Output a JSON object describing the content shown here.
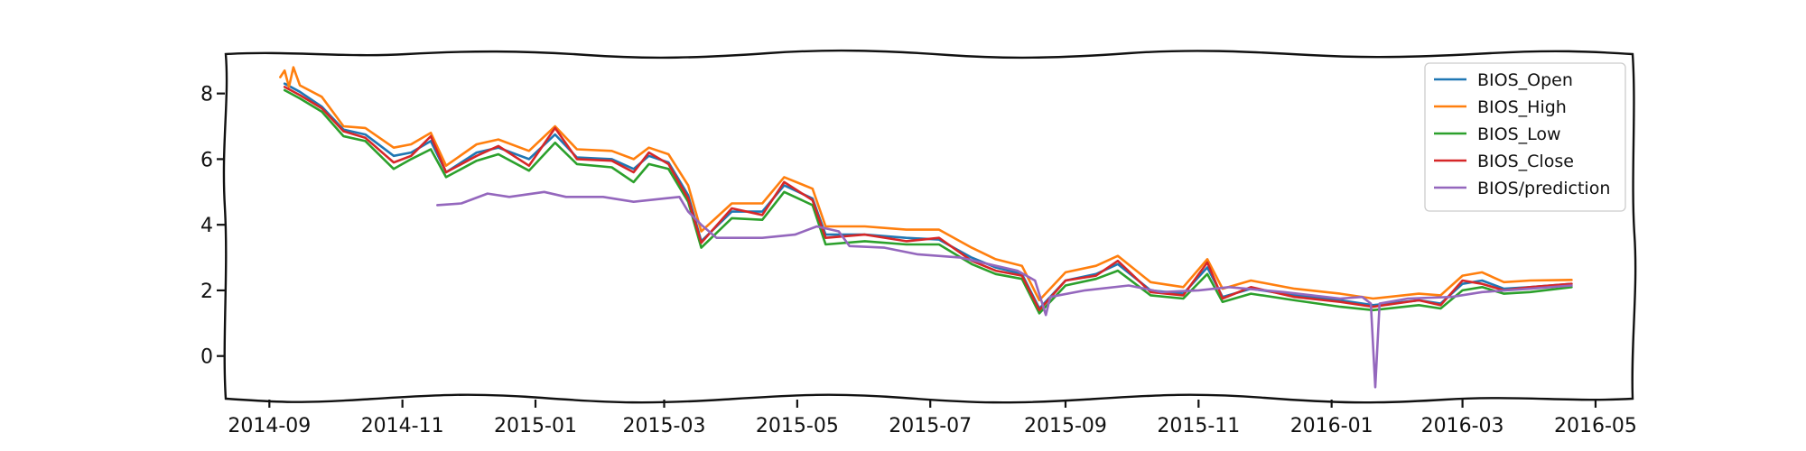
{
  "chart_data": {
    "type": "line",
    "title": "",
    "xlabel": "",
    "ylabel": "",
    "x_axis": "date",
    "xlim": [
      "2014-08-12",
      "2016-05-18"
    ],
    "ylim": [
      -1.3,
      9.2
    ],
    "x_ticks": [
      "2014-09",
      "2014-11",
      "2015-01",
      "2015-03",
      "2015-05",
      "2015-07",
      "2015-09",
      "2015-11",
      "2016-01",
      "2016-03",
      "2016-05"
    ],
    "x_tick_labels": [
      "2014-09",
      "2014-11",
      "2015-01",
      "2015-03",
      "2015-05",
      "2015-07",
      "2015-09",
      "2015-11",
      "2016-01",
      "2016-03",
      "2016-05"
    ],
    "y_ticks": [
      0,
      2,
      4,
      6,
      8
    ],
    "y_tick_labels": [
      "0",
      "2",
      "4",
      "6",
      "8"
    ],
    "grid": false,
    "legend_position": "top-right",
    "style": "hand-drawn frame",
    "series": [
      {
        "name": "BIOS_Open",
        "color": "#1f77b4",
        "points": [
          [
            "2014-09-08",
            8.3
          ],
          [
            "2014-09-15",
            8.05
          ],
          [
            "2014-09-25",
            7.6
          ],
          [
            "2014-10-05",
            6.9
          ],
          [
            "2014-10-15",
            6.75
          ],
          [
            "2014-10-28",
            6.1
          ],
          [
            "2014-11-05",
            6.2
          ],
          [
            "2014-11-14",
            6.55
          ],
          [
            "2014-11-21",
            5.6
          ],
          [
            "2014-12-05",
            6.2
          ],
          [
            "2014-12-15",
            6.35
          ],
          [
            "2014-12-29",
            6.0
          ],
          [
            "2015-01-10",
            6.75
          ],
          [
            "2015-01-20",
            6.05
          ],
          [
            "2015-02-05",
            6.0
          ],
          [
            "2015-02-15",
            5.7
          ],
          [
            "2015-02-22",
            6.1
          ],
          [
            "2015-03-03",
            5.9
          ],
          [
            "2015-03-12",
            4.9
          ],
          [
            "2015-03-18",
            3.5
          ],
          [
            "2015-04-01",
            4.4
          ],
          [
            "2015-04-15",
            4.4
          ],
          [
            "2015-04-25",
            5.2
          ],
          [
            "2015-05-08",
            4.8
          ],
          [
            "2015-05-14",
            3.7
          ],
          [
            "2015-06-01",
            3.7
          ],
          [
            "2015-06-20",
            3.6
          ],
          [
            "2015-07-05",
            3.55
          ],
          [
            "2015-07-20",
            3.0
          ],
          [
            "2015-07-31",
            2.7
          ],
          [
            "2015-08-12",
            2.5
          ],
          [
            "2015-08-20",
            1.45
          ],
          [
            "2015-09-01",
            2.3
          ],
          [
            "2015-09-15",
            2.5
          ],
          [
            "2015-09-25",
            2.8
          ],
          [
            "2015-10-10",
            2.0
          ],
          [
            "2015-10-25",
            1.9
          ],
          [
            "2015-11-05",
            2.7
          ],
          [
            "2015-11-12",
            1.8
          ],
          [
            "2015-11-25",
            2.05
          ],
          [
            "2015-12-15",
            1.85
          ],
          [
            "2016-01-05",
            1.7
          ],
          [
            "2016-01-20",
            1.55
          ],
          [
            "2016-02-10",
            1.7
          ],
          [
            "2016-02-20",
            1.6
          ],
          [
            "2016-03-01",
            2.2
          ],
          [
            "2016-03-10",
            2.3
          ],
          [
            "2016-03-20",
            2.05
          ],
          [
            "2016-04-01",
            2.1
          ],
          [
            "2016-04-20",
            2.2
          ]
        ]
      },
      {
        "name": "BIOS_High",
        "color": "#ff7f0e",
        "points": [
          [
            "2014-09-06",
            8.5
          ],
          [
            "2014-09-08",
            8.7
          ],
          [
            "2014-09-10",
            8.2
          ],
          [
            "2014-09-12",
            8.8
          ],
          [
            "2014-09-15",
            8.25
          ],
          [
            "2014-09-25",
            7.9
          ],
          [
            "2014-10-05",
            7.0
          ],
          [
            "2014-10-15",
            6.95
          ],
          [
            "2014-10-28",
            6.35
          ],
          [
            "2014-11-05",
            6.45
          ],
          [
            "2014-11-14",
            6.8
          ],
          [
            "2014-11-21",
            5.8
          ],
          [
            "2014-12-05",
            6.45
          ],
          [
            "2014-12-15",
            6.6
          ],
          [
            "2014-12-29",
            6.25
          ],
          [
            "2015-01-10",
            7.0
          ],
          [
            "2015-01-20",
            6.3
          ],
          [
            "2015-02-05",
            6.25
          ],
          [
            "2015-02-15",
            6.0
          ],
          [
            "2015-02-22",
            6.35
          ],
          [
            "2015-03-03",
            6.15
          ],
          [
            "2015-03-12",
            5.2
          ],
          [
            "2015-03-18",
            3.8
          ],
          [
            "2015-04-01",
            4.65
          ],
          [
            "2015-04-15",
            4.65
          ],
          [
            "2015-04-25",
            5.45
          ],
          [
            "2015-05-08",
            5.1
          ],
          [
            "2015-05-14",
            3.95
          ],
          [
            "2015-06-01",
            3.95
          ],
          [
            "2015-06-20",
            3.85
          ],
          [
            "2015-07-05",
            3.85
          ],
          [
            "2015-07-20",
            3.3
          ],
          [
            "2015-07-31",
            2.95
          ],
          [
            "2015-08-12",
            2.75
          ],
          [
            "2015-08-20",
            1.7
          ],
          [
            "2015-09-01",
            2.55
          ],
          [
            "2015-09-15",
            2.75
          ],
          [
            "2015-09-25",
            3.05
          ],
          [
            "2015-10-10",
            2.25
          ],
          [
            "2015-10-25",
            2.1
          ],
          [
            "2015-11-05",
            2.95
          ],
          [
            "2015-11-12",
            2.05
          ],
          [
            "2015-11-25",
            2.3
          ],
          [
            "2015-12-15",
            2.05
          ],
          [
            "2016-01-05",
            1.9
          ],
          [
            "2016-01-20",
            1.75
          ],
          [
            "2016-02-10",
            1.9
          ],
          [
            "2016-02-20",
            1.85
          ],
          [
            "2016-03-01",
            2.45
          ],
          [
            "2016-03-10",
            2.55
          ],
          [
            "2016-03-20",
            2.25
          ],
          [
            "2016-04-01",
            2.3
          ],
          [
            "2016-04-20",
            2.32
          ]
        ]
      },
      {
        "name": "BIOS_Low",
        "color": "#2ca02c",
        "points": [
          [
            "2014-09-08",
            8.1
          ],
          [
            "2014-09-15",
            7.85
          ],
          [
            "2014-09-25",
            7.45
          ],
          [
            "2014-10-05",
            6.7
          ],
          [
            "2014-10-15",
            6.55
          ],
          [
            "2014-10-28",
            5.7
          ],
          [
            "2014-11-05",
            6.0
          ],
          [
            "2014-11-14",
            6.3
          ],
          [
            "2014-11-21",
            5.45
          ],
          [
            "2014-12-05",
            5.95
          ],
          [
            "2014-12-15",
            6.15
          ],
          [
            "2014-12-29",
            5.65
          ],
          [
            "2015-01-10",
            6.5
          ],
          [
            "2015-01-20",
            5.85
          ],
          [
            "2015-02-05",
            5.75
          ],
          [
            "2015-02-15",
            5.3
          ],
          [
            "2015-02-22",
            5.85
          ],
          [
            "2015-03-03",
            5.7
          ],
          [
            "2015-03-12",
            4.7
          ],
          [
            "2015-03-18",
            3.3
          ],
          [
            "2015-04-01",
            4.2
          ],
          [
            "2015-04-15",
            4.15
          ],
          [
            "2015-04-25",
            5.0
          ],
          [
            "2015-05-08",
            4.6
          ],
          [
            "2015-05-14",
            3.4
          ],
          [
            "2015-06-01",
            3.5
          ],
          [
            "2015-06-20",
            3.4
          ],
          [
            "2015-07-05",
            3.4
          ],
          [
            "2015-07-20",
            2.8
          ],
          [
            "2015-07-31",
            2.5
          ],
          [
            "2015-08-12",
            2.35
          ],
          [
            "2015-08-20",
            1.3
          ],
          [
            "2015-09-01",
            2.15
          ],
          [
            "2015-09-15",
            2.35
          ],
          [
            "2015-09-25",
            2.6
          ],
          [
            "2015-10-10",
            1.85
          ],
          [
            "2015-10-25",
            1.75
          ],
          [
            "2015-11-05",
            2.5
          ],
          [
            "2015-11-12",
            1.65
          ],
          [
            "2015-11-25",
            1.9
          ],
          [
            "2015-12-15",
            1.7
          ],
          [
            "2016-01-05",
            1.5
          ],
          [
            "2016-01-20",
            1.4
          ],
          [
            "2016-02-10",
            1.55
          ],
          [
            "2016-02-20",
            1.45
          ],
          [
            "2016-03-01",
            2.0
          ],
          [
            "2016-03-10",
            2.1
          ],
          [
            "2016-03-20",
            1.9
          ],
          [
            "2016-04-01",
            1.95
          ],
          [
            "2016-04-20",
            2.1
          ]
        ]
      },
      {
        "name": "BIOS_Close",
        "color": "#d62728",
        "points": [
          [
            "2014-09-08",
            8.2
          ],
          [
            "2014-09-15",
            7.95
          ],
          [
            "2014-09-25",
            7.55
          ],
          [
            "2014-10-05",
            6.85
          ],
          [
            "2014-10-15",
            6.65
          ],
          [
            "2014-10-28",
            5.9
          ],
          [
            "2014-11-05",
            6.1
          ],
          [
            "2014-11-14",
            6.7
          ],
          [
            "2014-11-21",
            5.6
          ],
          [
            "2014-12-05",
            6.1
          ],
          [
            "2014-12-15",
            6.4
          ],
          [
            "2014-12-29",
            5.8
          ],
          [
            "2015-01-10",
            6.95
          ],
          [
            "2015-01-20",
            6.0
          ],
          [
            "2015-02-05",
            5.95
          ],
          [
            "2015-02-15",
            5.6
          ],
          [
            "2015-02-22",
            6.2
          ],
          [
            "2015-03-03",
            5.85
          ],
          [
            "2015-03-12",
            4.8
          ],
          [
            "2015-03-18",
            3.45
          ],
          [
            "2015-04-01",
            4.5
          ],
          [
            "2015-04-15",
            4.3
          ],
          [
            "2015-04-25",
            5.3
          ],
          [
            "2015-05-08",
            4.75
          ],
          [
            "2015-05-14",
            3.6
          ],
          [
            "2015-06-01",
            3.7
          ],
          [
            "2015-06-20",
            3.5
          ],
          [
            "2015-07-05",
            3.6
          ],
          [
            "2015-07-20",
            2.9
          ],
          [
            "2015-07-31",
            2.6
          ],
          [
            "2015-08-12",
            2.45
          ],
          [
            "2015-08-20",
            1.4
          ],
          [
            "2015-09-01",
            2.3
          ],
          [
            "2015-09-15",
            2.45
          ],
          [
            "2015-09-25",
            2.9
          ],
          [
            "2015-10-10",
            1.95
          ],
          [
            "2015-10-25",
            1.85
          ],
          [
            "2015-11-05",
            2.85
          ],
          [
            "2015-11-12",
            1.75
          ],
          [
            "2015-11-25",
            2.1
          ],
          [
            "2015-12-15",
            1.8
          ],
          [
            "2016-01-05",
            1.65
          ],
          [
            "2016-01-20",
            1.5
          ],
          [
            "2016-02-10",
            1.7
          ],
          [
            "2016-02-20",
            1.55
          ],
          [
            "2016-03-01",
            2.3
          ],
          [
            "2016-03-10",
            2.2
          ],
          [
            "2016-03-20",
            2.0
          ],
          [
            "2016-04-01",
            2.1
          ],
          [
            "2016-04-20",
            2.2
          ]
        ]
      },
      {
        "name": "BIOS/prediction",
        "color": "#9467bd",
        "points": [
          [
            "2014-11-17",
            4.6
          ],
          [
            "2014-11-28",
            4.65
          ],
          [
            "2014-12-10",
            4.95
          ],
          [
            "2014-12-20",
            4.85
          ],
          [
            "2015-01-05",
            5.0
          ],
          [
            "2015-01-15",
            4.85
          ],
          [
            "2015-02-01",
            4.85
          ],
          [
            "2015-02-15",
            4.7
          ],
          [
            "2015-03-01",
            4.8
          ],
          [
            "2015-03-08",
            4.85
          ],
          [
            "2015-03-12",
            4.4
          ],
          [
            "2015-03-18",
            4.0
          ],
          [
            "2015-03-25",
            3.6
          ],
          [
            "2015-04-15",
            3.6
          ],
          [
            "2015-04-30",
            3.7
          ],
          [
            "2015-05-10",
            3.95
          ],
          [
            "2015-05-20",
            3.8
          ],
          [
            "2015-05-25",
            3.35
          ],
          [
            "2015-06-10",
            3.3
          ],
          [
            "2015-06-25",
            3.1
          ],
          [
            "2015-07-15",
            3.0
          ],
          [
            "2015-07-31",
            2.75
          ],
          [
            "2015-08-10",
            2.6
          ],
          [
            "2015-08-18",
            2.3
          ],
          [
            "2015-08-23",
            1.25
          ],
          [
            "2015-08-25",
            1.8
          ],
          [
            "2015-09-10",
            2.0
          ],
          [
            "2015-09-30",
            2.15
          ],
          [
            "2015-10-15",
            1.95
          ],
          [
            "2015-11-01",
            2.0
          ],
          [
            "2015-11-15",
            2.1
          ],
          [
            "2015-12-10",
            1.95
          ],
          [
            "2016-01-05",
            1.75
          ],
          [
            "2016-01-15",
            1.8
          ],
          [
            "2016-01-19",
            1.6
          ],
          [
            "2016-01-21",
            -0.95
          ],
          [
            "2016-01-23",
            1.6
          ],
          [
            "2016-02-05",
            1.75
          ],
          [
            "2016-02-25",
            1.8
          ],
          [
            "2016-03-10",
            1.95
          ],
          [
            "2016-04-01",
            2.05
          ],
          [
            "2016-04-20",
            2.15
          ]
        ]
      }
    ]
  }
}
